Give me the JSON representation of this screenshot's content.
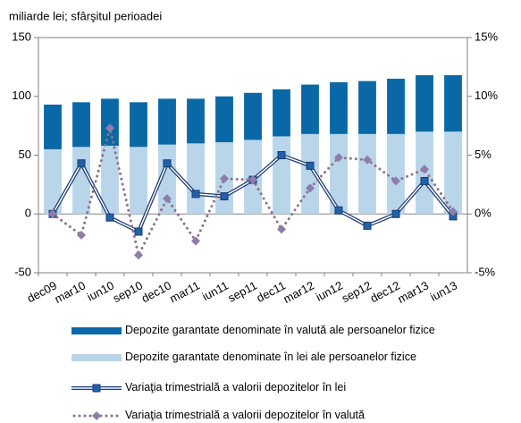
{
  "chart_data": {
    "type": "bar",
    "title": "miliarde lei; sfârşitul perioadei",
    "categories": [
      "dec09",
      "mar10",
      "iun10",
      "sep10",
      "dec10",
      "mar11",
      "iun11",
      "sep11",
      "dec11",
      "mar12",
      "iun12",
      "sep12",
      "dec12",
      "mar13",
      "iun13"
    ],
    "series": [
      {
        "name": "Depozite garantate denominate în valută ale persoanelor fizice",
        "type": "bar",
        "color": "#0a68a6",
        "values": [
          38,
          38,
          40,
          38,
          39,
          38,
          39,
          40,
          40,
          42,
          44,
          45,
          47,
          48,
          48
        ]
      },
      {
        "name": "Depozite garantate denominate în lei ale persoanelor fizice",
        "type": "bar",
        "color": "#b9d5ea",
        "values": [
          55,
          57,
          58,
          57,
          59,
          60,
          61,
          63,
          66,
          68,
          68,
          68,
          68,
          70,
          70
        ]
      },
      {
        "name": "Variaţia trimestrială a valorii depozitelor în lei",
        "type": "line",
        "axis": "y2",
        "color": "#1c3a73",
        "marker": "square",
        "values": [
          0,
          4.3,
          -0.3,
          -1.5,
          4.3,
          1.7,
          1.5,
          2.9,
          5.0,
          4.1,
          0.3,
          -1.0,
          0.0,
          2.8,
          -0.2
        ]
      },
      {
        "name": "Variaţia trimestrială a valorii depozitelor în valută",
        "type": "line",
        "axis": "y2",
        "color": "#8d7384",
        "marker": "diamond",
        "dashed": true,
        "values": [
          0,
          -1.8,
          7.3,
          -3.5,
          1.3,
          -2.3,
          3.0,
          2.9,
          -1.3,
          2.2,
          4.8,
          4.6,
          2.8,
          3.8,
          0.2
        ]
      }
    ],
    "ylim": [
      -50,
      150
    ],
    "yticks": [
      -50,
      0,
      50,
      100,
      150
    ],
    "y2lim": [
      -5,
      15
    ],
    "y2ticks": [
      {
        "value": -5,
        "label": "-5%"
      },
      {
        "value": 0,
        "label": "0%"
      },
      {
        "value": 5,
        "label": "5%"
      },
      {
        "value": 10,
        "label": "10%"
      },
      {
        "value": 15,
        "label": "15%"
      }
    ]
  }
}
